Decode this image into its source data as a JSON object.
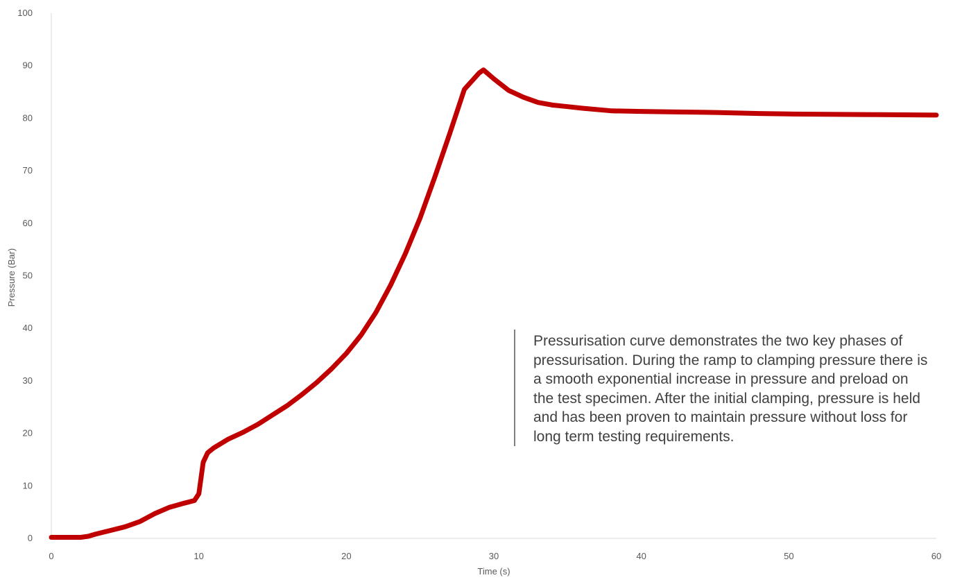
{
  "chart_data": {
    "type": "line",
    "title": "",
    "xlabel": "Time (s)",
    "ylabel": "Pressure (Bar)",
    "xlim": [
      0,
      60
    ],
    "ylim": [
      0,
      100
    ],
    "xticks": [
      "0",
      "10",
      "20",
      "30",
      "40",
      "50",
      "60"
    ],
    "yticks": [
      "0",
      "10",
      "20",
      "30",
      "40",
      "50",
      "60",
      "70",
      "80",
      "90",
      "100"
    ],
    "grid": false,
    "legend": "none",
    "line_color": "#C00000",
    "series": [
      {
        "x": [
          0,
          1,
          2,
          2.5,
          3,
          4,
          5,
          6,
          7,
          8,
          9,
          9.7,
          10.0,
          10.3,
          10.6,
          11,
          12,
          13,
          14,
          15,
          16,
          17,
          18,
          19,
          20,
          21,
          22,
          23,
          24,
          25,
          26,
          27,
          28,
          29,
          29.3,
          30,
          31,
          32,
          33,
          34,
          35,
          36,
          38,
          40,
          42,
          45,
          48,
          50,
          55,
          60
        ],
        "y": [
          0.2,
          0.2,
          0.2,
          0.4,
          0.8,
          1.5,
          2.2,
          3.2,
          4.7,
          5.9,
          6.7,
          7.2,
          8.5,
          14.5,
          16.3,
          17.2,
          18.9,
          20.2,
          21.7,
          23.5,
          25.3,
          27.4,
          29.7,
          32.3,
          35.2,
          38.7,
          43.0,
          48.2,
          54.2,
          61.0,
          68.8,
          77.0,
          85.5,
          88.6,
          89.2,
          87.5,
          85.3,
          84.0,
          83.0,
          82.5,
          82.2,
          81.9,
          81.4,
          81.3,
          81.2,
          81.1,
          80.9,
          80.8,
          80.7,
          80.6
        ]
      }
    ]
  },
  "annotation": {
    "text": "Pressurisation curve demonstrates the two key phases of pressurisation. During the ramp to clamping pressure there is a smooth exponential increase in pressure and preload on the test specimen. After the initial clamping, pressure is held and has been proven to maintain pressure without loss for long term testing requirements."
  }
}
